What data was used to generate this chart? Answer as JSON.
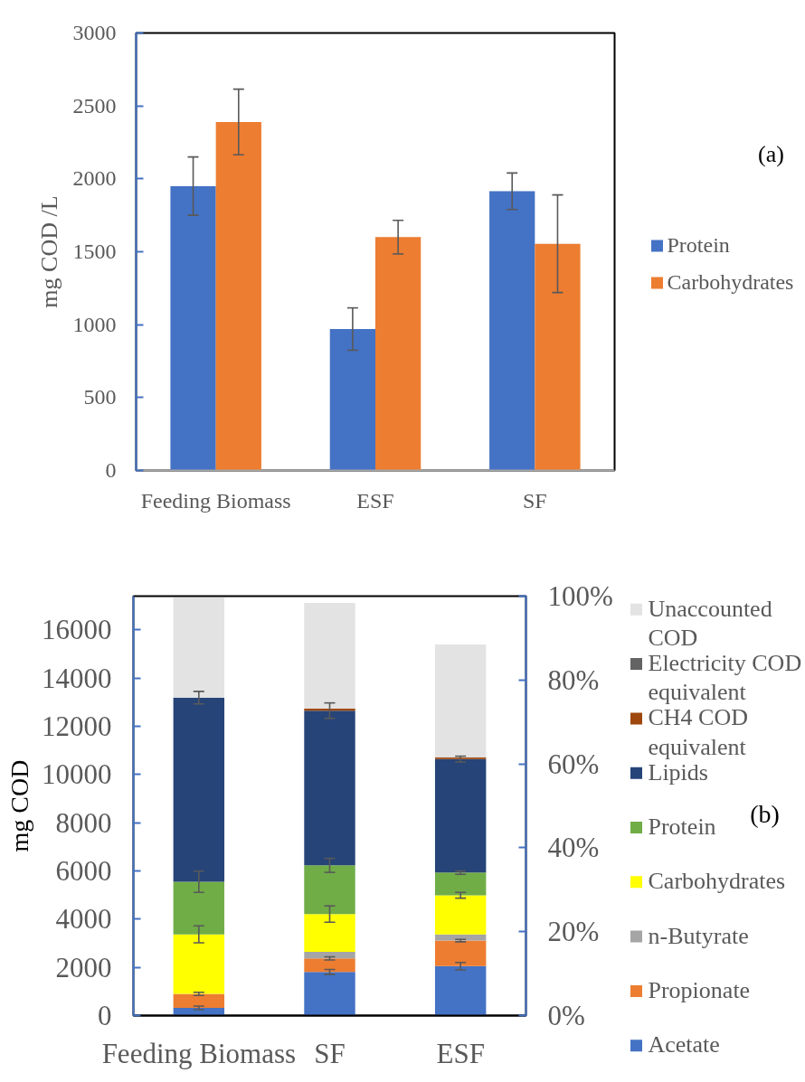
{
  "chart_data": [
    {
      "type": "bar",
      "categories": [
        "Feeding Biomass",
        "ESF",
        "SF"
      ],
      "ylabel": "mg COD /L",
      "ylim": [
        0,
        3000
      ],
      "yticks": [
        0,
        500,
        1000,
        1500,
        2000,
        2500,
        3000
      ],
      "legend": "right",
      "annotations": [
        "(a)"
      ],
      "series": [
        {
          "name": "Protein",
          "color": "#4472c4",
          "values": [
            1950,
            970,
            1915
          ],
          "errors": [
            200,
            145,
            125
          ]
        },
        {
          "name": "Carbohydrates",
          "color": "#ed7d31",
          "values": [
            2390,
            1600,
            1555
          ],
          "errors": [
            225,
            115,
            335
          ]
        }
      ]
    },
    {
      "type": "bar",
      "stacked": true,
      "categories": [
        "Feeding Biomass",
        "SF",
        "ESF"
      ],
      "ylabel": "mg COD",
      "ylim": [
        0,
        17400
      ],
      "yticks": [
        0,
        2000,
        4000,
        6000,
        8000,
        10000,
        12000,
        14000,
        16000
      ],
      "y2lim": [
        0,
        100
      ],
      "y2ticks": [
        {
          "value": 0,
          "label": "0%"
        },
        {
          "value": 20,
          "label": "20%"
        },
        {
          "value": 40,
          "label": "40%"
        },
        {
          "value": 60,
          "label": "60%"
        },
        {
          "value": 80,
          "label": "80%"
        },
        {
          "value": 100,
          "label": "100%"
        }
      ],
      "legend": "right",
      "annotations": [
        "(b)"
      ],
      "series": [
        {
          "name": "Acetate",
          "color": "#4472c4",
          "values": [
            320,
            1810,
            2050
          ],
          "errors": [
            75,
            100,
            155
          ]
        },
        {
          "name": "Propionate",
          "color": "#ed7d31",
          "values": [
            580,
            560,
            1060
          ],
          "errors": [
            65,
            65,
            50
          ]
        },
        {
          "name": "n-Butyrate",
          "color": "#a5a5a5",
          "values": [
            null,
            270,
            260
          ]
        },
        {
          "name": "Carbohydrates",
          "color": "#ffff00",
          "values": [
            2470,
            1570,
            1620
          ],
          "errors": [
            350,
            340,
            120
          ]
        },
        {
          "name": "Protein",
          "color": "#70ad47",
          "values": [
            2180,
            2020,
            940
          ],
          "errors": [
            440,
            290,
            70
          ]
        },
        {
          "name": "Lipids",
          "color": "#264478",
          "values": [
            7640,
            6420,
            4710
          ],
          "errors": [
            260,
            320,
            120
          ]
        },
        {
          "name": "CH4 COD equivalent",
          "color": "#9e480e",
          "values": [
            null,
            90,
            80
          ]
        },
        {
          "name": "Electricity COD equivalent",
          "color": "#636363",
          "values": [
            null,
            null,
            null
          ]
        },
        {
          "name": "Unaccounted COD",
          "color": "#e3e3e3",
          "values": [
            4150,
            4380,
            4670
          ]
        }
      ]
    }
  ]
}
